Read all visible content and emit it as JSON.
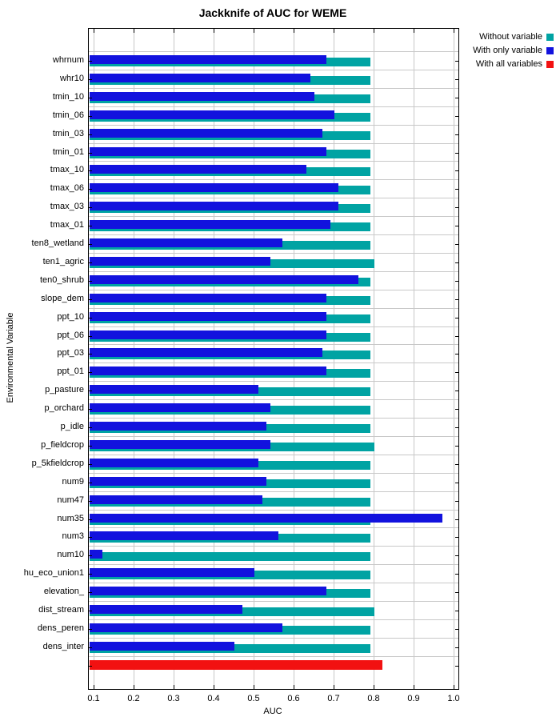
{
  "title": "Jackknife of AUC for WEME",
  "legend": [
    {
      "label": "Without variable",
      "color": "#00a3a3"
    },
    {
      "label": "With only variable",
      "color": "#1212de"
    },
    {
      "label": "With all variables",
      "color": "#f21111"
    }
  ],
  "chart_data": {
    "type": "bar",
    "orientation": "horizontal",
    "title": "Jackknife of AUC for WEME",
    "xlabel": "AUC",
    "ylabel": "Environmental Variable",
    "xlim": [
      0.088,
      1.012
    ],
    "xticks": [
      0.1,
      0.2,
      0.3,
      0.4,
      0.5,
      0.6,
      0.7,
      0.8,
      0.9,
      1.0
    ],
    "xtick_labels": [
      "0.1",
      "0.2",
      "0.3",
      "0.4",
      "0.5",
      "0.6",
      "0.7",
      "0.8",
      "0.9",
      "1.0"
    ],
    "grid": true,
    "legend_position": "top-right",
    "categories": [
      "whrnum",
      "whr10",
      "tmin_10",
      "tmin_06",
      "tmin_03",
      "tmin_01",
      "tmax_10",
      "tmax_06",
      "tmax_03",
      "tmax_01",
      "ten8_wetland",
      "ten1_agric",
      "ten0_shrub",
      "slope_dem",
      "ppt_10",
      "ppt_06",
      "ppt_03",
      "ppt_01",
      "p_pasture",
      "p_orchard",
      "p_idle",
      "p_fieldcrop",
      "p_5kfieldcrop",
      "num9",
      "num47",
      "num35",
      "num3",
      "num10",
      "hu_eco_union1",
      "elevation_",
      "dist_stream",
      "dens_peren",
      "dens_inter"
    ],
    "series": [
      {
        "name": "Without variable",
        "color": "#00a3a3",
        "values": [
          0.79,
          0.79,
          0.79,
          0.79,
          0.79,
          0.79,
          0.79,
          0.79,
          0.79,
          0.79,
          0.79,
          0.8,
          0.79,
          0.79,
          0.79,
          0.79,
          0.79,
          0.79,
          0.79,
          0.79,
          0.79,
          0.8,
          0.79,
          0.79,
          0.79,
          0.79,
          0.79,
          0.79,
          0.79,
          0.79,
          0.8,
          0.79,
          0.79
        ]
      },
      {
        "name": "With only variable",
        "color": "#1212de",
        "values": [
          0.68,
          0.64,
          0.65,
          0.7,
          0.67,
          0.68,
          0.63,
          0.71,
          0.71,
          0.69,
          0.57,
          0.54,
          0.76,
          0.68,
          0.68,
          0.68,
          0.67,
          0.68,
          0.51,
          0.54,
          0.53,
          0.54,
          0.51,
          0.53,
          0.52,
          0.97,
          0.56,
          0.12,
          0.5,
          0.68,
          0.47,
          0.57,
          0.45
        ]
      }
    ],
    "with_all_variables": {
      "name": "With all variables",
      "color": "#f21111",
      "value": 0.82
    }
  }
}
